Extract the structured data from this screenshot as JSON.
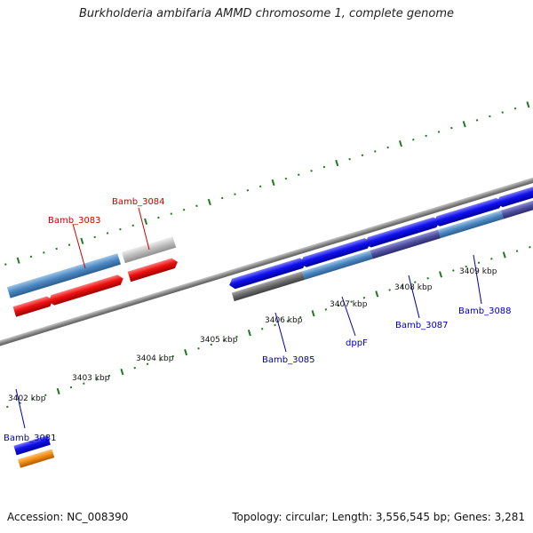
{
  "title": "Burkholderia ambifaria AMMD chromosome 1, complete genome",
  "accession_text": "Accession: NC_008390",
  "summary_text": "Topology: circular; Length: 3,556,545 bp; Genes: 3,281",
  "scale_labels": [
    "3402 kbp",
    "3403 kbp",
    "3404 kbp",
    "3405 kbp",
    "3406 kbp",
    "3407 kbp",
    "3408 kbp",
    "3409 kbp"
  ],
  "gene_labels": [
    {
      "text": "Bamb_3081",
      "color": "#0000aa"
    },
    {
      "text": "Bamb_3083",
      "color": "#cc0000"
    },
    {
      "text": "Bamb_3084",
      "color": "#cc0000"
    },
    {
      "text": "Bamb_3085",
      "color": "#0000aa"
    },
    {
      "text": "dppF",
      "color": "#0000aa"
    },
    {
      "text": "Bamb_3087",
      "color": "#0000aa"
    },
    {
      "text": "Bamb_3088",
      "color": "#0000aa"
    }
  ],
  "colors": {
    "backbone": "#8a8a8a",
    "tick": "#1f7a1f",
    "forward_cds": "#1010ee",
    "reverse_cds": "#ee1111",
    "cog_blue": "#4a86c0",
    "cog_grey": "#bdbdbd",
    "cog_dark": "#6a6a6a",
    "cog_purple": "#4e4e9e",
    "cog_orange": "#f08a10"
  }
}
